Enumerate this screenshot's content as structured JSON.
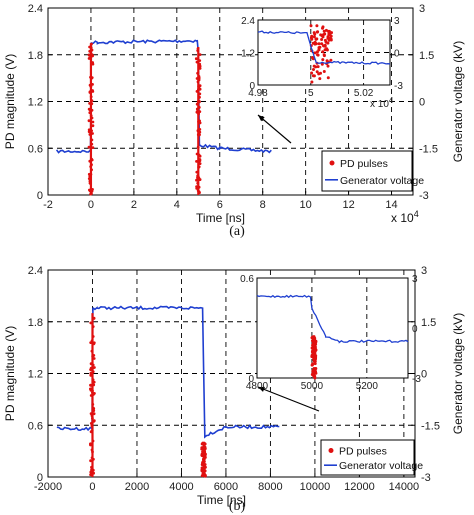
{
  "chart_data": [
    {
      "type": "line",
      "caption": "(a)",
      "xlabel": "Time [ns]",
      "x_exponent": "x 10^4",
      "ylabel_left": "PD magnitude (V)",
      "ylabel_right": "Generator voltage (kV)",
      "xlim": [
        -2,
        15
      ],
      "ylim": [
        0,
        2.4
      ],
      "y2lim": [
        -3,
        3
      ],
      "xticks": [
        "-2",
        "0",
        "2",
        "4",
        "6",
        "8",
        "10",
        "12",
        "14"
      ],
      "yticks": [
        "0",
        "0.6",
        "1.2",
        "1.8",
        "2.4"
      ],
      "y2ticks": [
        "-3",
        "-1.5",
        "0",
        "1.5",
        "3"
      ],
      "grid": true,
      "legend": {
        "position": "bottom-right",
        "entries": [
          "PD pulses",
          "Generator voltage"
        ]
      },
      "series": [
        {
          "name": "Generator voltage",
          "axis": "right",
          "color": "#1f3fd0",
          "x": [
            -1.6,
            -0.02,
            0.02,
            0.3,
            4.95,
            5.0,
            5.05,
            6,
            8.4
          ],
          "values": [
            -1.6,
            -1.6,
            1.9,
            1.9,
            1.95,
            1.6,
            -1.4,
            -1.5,
            -1.6
          ]
        },
        {
          "name": "PD pulses",
          "axis": "left",
          "color": "#e01010",
          "bursts": [
            {
              "x": 0.0,
              "max": 1.95
            },
            {
              "x": 5.0,
              "max": 1.9
            }
          ]
        }
      ],
      "inset": {
        "xlim": [
          4.98,
          5.03
        ],
        "xticks": [
          "4.98",
          "5",
          "5.02"
        ],
        "x_exponent": "x 10^4",
        "yticks_left": [
          "0",
          "1.2",
          "2.4"
        ],
        "yticks_right": [
          "-3",
          "0",
          "3"
        ],
        "voltage": {
          "x": [
            4.98,
            4.9985,
            5.0,
            5.002,
            5.03
          ],
          "values": [
            1.9,
            1.8,
            0.6,
            -0.9,
            -1.0
          ]
        },
        "pd_cluster": {
          "x_range": [
            5.0,
            5.008
          ],
          "y_range": [
            0.1,
            2.2
          ]
        }
      }
    },
    {
      "type": "line",
      "caption": "(b)",
      "xlabel": "Time [ns]",
      "ylabel_left": "PD magnitude (V)",
      "ylabel_right": "Generator voltage (kV)",
      "xlim": [
        -2000,
        14500
      ],
      "ylim": [
        0,
        2.4
      ],
      "y2lim": [
        -3,
        3
      ],
      "xticks": [
        "-2000",
        "0",
        "2000",
        "4000",
        "6000",
        "8000",
        "10000",
        "12000",
        "14000"
      ],
      "yticks": [
        "0",
        "0.6",
        "1.2",
        "1.8",
        "2.4"
      ],
      "y2ticks": [
        "-3",
        "-1.5",
        "0",
        "1.5",
        "3"
      ],
      "grid": true,
      "legend": {
        "position": "bottom-right",
        "entries": [
          "PD pulses",
          "Generator voltage"
        ]
      },
      "series": [
        {
          "name": "Generator voltage",
          "axis": "right",
          "color": "#1f3fd0",
          "x": [
            -1600,
            -20,
            20,
            200,
            4950,
            5000,
            5050,
            6000,
            8400
          ],
          "values": [
            -1.6,
            -1.6,
            1.9,
            1.9,
            1.9,
            0.0,
            -1.8,
            -1.55,
            -1.55
          ]
        },
        {
          "name": "PD pulses",
          "axis": "left",
          "color": "#e01010",
          "bursts": [
            {
              "x": 0,
              "max": 1.9
            },
            {
              "x": 5000,
              "max": 0.4
            }
          ]
        }
      ],
      "inset": {
        "xlim": [
          4800,
          5350
        ],
        "xticks": [
          "4800",
          "5000",
          "5200"
        ],
        "yticks_left": [
          "0",
          "0.6"
        ],
        "yticks_right": [
          "-3",
          "0",
          "3"
        ],
        "voltage": {
          "x": [
            4800,
            4995,
            5000,
            5050,
            5100,
            5350
          ],
          "values": [
            1.9,
            1.9,
            1.2,
            -0.5,
            -0.8,
            -0.8
          ]
        },
        "pd_cluster": {
          "x_range": [
            5000,
            5015
          ],
          "y_range": [
            0.0,
            0.25
          ]
        }
      }
    }
  ]
}
